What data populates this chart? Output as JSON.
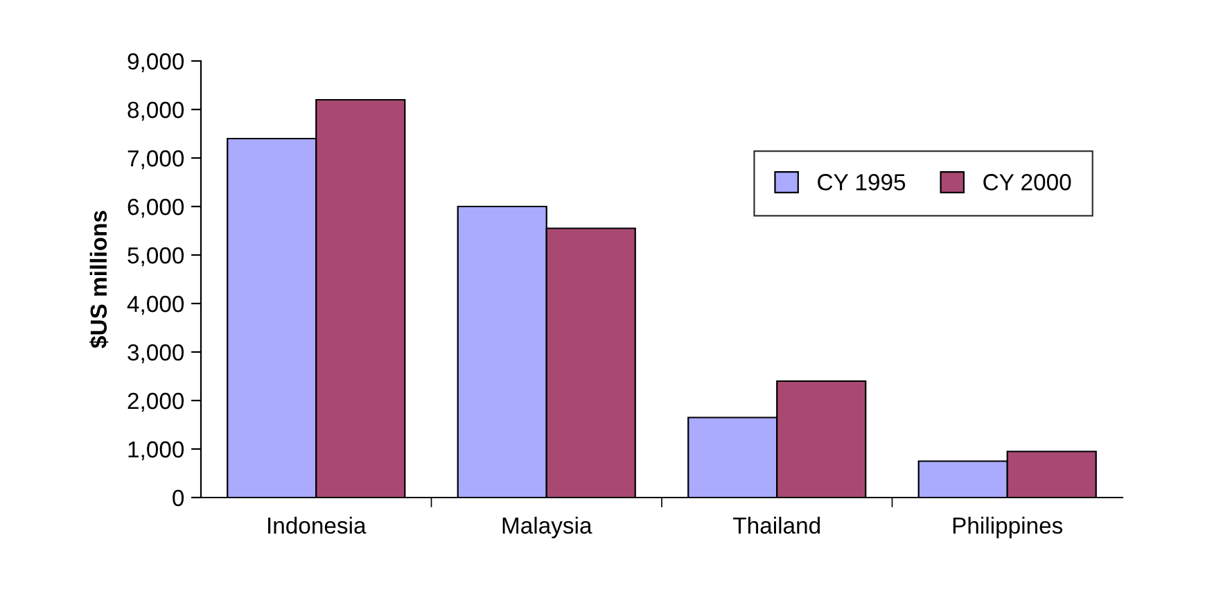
{
  "chart_data": {
    "type": "bar",
    "ylabel": "$US millions",
    "categories": [
      "Indonesia",
      "Malaysia",
      "Thailand",
      "Philippines"
    ],
    "series": [
      {
        "name": "CY 1995",
        "color": "#aaaaff",
        "values": [
          7400,
          6000,
          1650,
          750
        ]
      },
      {
        "name": "CY 2000",
        "color": "#a94973",
        "values": [
          8200,
          5550,
          2400,
          950
        ]
      }
    ],
    "ylim": [
      0,
      9000
    ],
    "yticks": [
      {
        "value": 0,
        "label": "0"
      },
      {
        "value": 1000,
        "label": "1,000"
      },
      {
        "value": 2000,
        "label": "2,000"
      },
      {
        "value": 3000,
        "label": "3,000"
      },
      {
        "value": 4000,
        "label": "4,000"
      },
      {
        "value": 5000,
        "label": "5,000"
      },
      {
        "value": 6000,
        "label": "6,000"
      },
      {
        "value": 7000,
        "label": "7,000"
      },
      {
        "value": 8000,
        "label": "8,000"
      },
      {
        "value": 9000,
        "label": "9,000"
      }
    ],
    "grid": false,
    "legend": "top right"
  }
}
